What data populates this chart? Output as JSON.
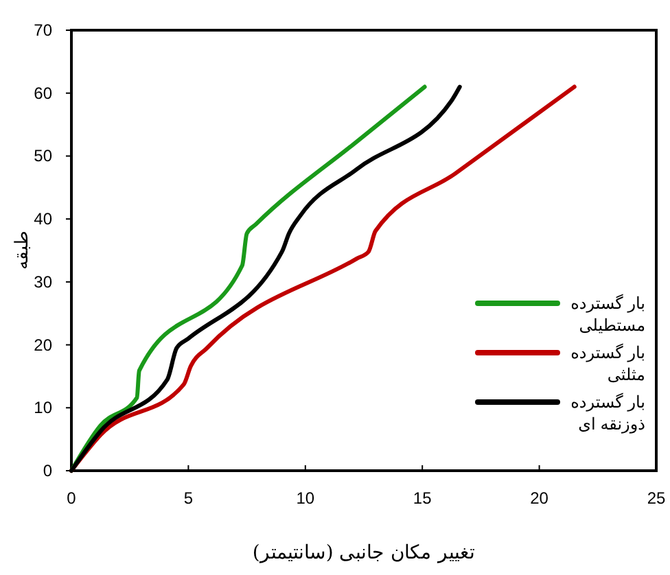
{
  "chart_data": {
    "type": "line",
    "xlabel": "تغییر مکان جانبی (سانتیمتر)",
    "ylabel": "طبقه",
    "xlim": [
      0,
      25
    ],
    "xticks": [
      0,
      5,
      10,
      15,
      20,
      25
    ],
    "ylim": [
      0,
      70
    ],
    "yticks": [
      0,
      10,
      20,
      30,
      40,
      50,
      60,
      70
    ],
    "grid": false,
    "legend": "bottom right",
    "line_style": "solid",
    "series": [
      {
        "name": "بار گسترده مستطیلی",
        "color": "#1a9a1a",
        "x": [
          0,
          1.25,
          2.8,
          2.9,
          7.3,
          7.5,
          7.9,
          12.2,
          15.1
        ],
        "values": [
          0,
          7.2,
          11.6,
          15.9,
          32.6,
          37.7,
          39.2,
          52.3,
          61
        ]
      },
      {
        "name": "بار گسترده مثلثی",
        "color": "#c00000",
        "x": [
          0,
          1.25,
          4.8,
          5.1,
          5.8,
          12.2,
          12.7,
          13.0,
          16.4,
          21.5
        ],
        "values": [
          0,
          5.7,
          13.7,
          16.6,
          19.5,
          33.7,
          34.8,
          38.1,
          47.2,
          61
        ]
      },
      {
        "name": "بار گسترده ذوزنقه ای",
        "color": "#000000",
        "x": [
          0,
          1.25,
          4.1,
          4.5,
          5.0,
          9.0,
          9.3,
          9.8,
          12.2,
          16.25,
          16.6
        ],
        "values": [
          0,
          6.3,
          14.5,
          19.5,
          21,
          34.8,
          37.7,
          40.6,
          47.9,
          58.8,
          61
        ]
      }
    ]
  }
}
